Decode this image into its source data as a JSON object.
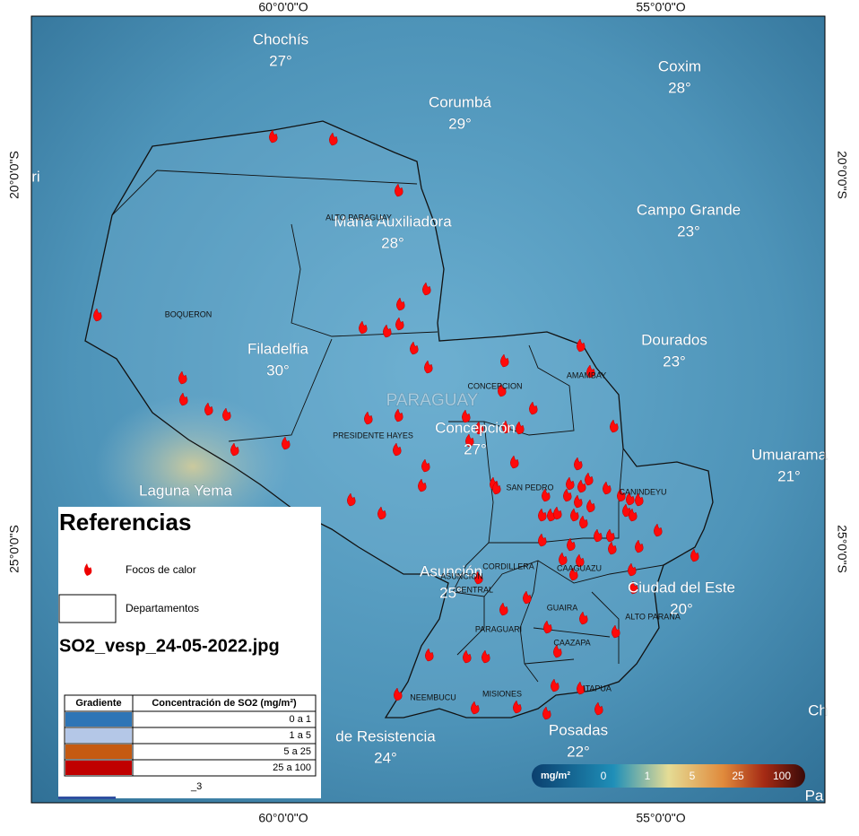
{
  "map": {
    "edge_labels": {
      "lon_west": "60°0'0\"O",
      "lon_east": "55°0'0\"O",
      "lat_north": "20°0'0\"S",
      "lat_south": "25°0'0\"S"
    },
    "cities": [
      {
        "name": "Chochís",
        "temp": "27°"
      },
      {
        "name": "Corumbá",
        "temp": "29°"
      },
      {
        "name": "Coxim",
        "temp": "28°"
      },
      {
        "name": "María Auxiliadora",
        "temp": "28°"
      },
      {
        "name": "Campo Grande",
        "temp": "23°"
      },
      {
        "name": "Filadelfia",
        "temp": "30°"
      },
      {
        "name": "Dourados",
        "temp": "23°"
      },
      {
        "name": "Concepción",
        "temp": "27°"
      },
      {
        "name": "Umuarama",
        "temp": "21°"
      },
      {
        "name": "Asunción",
        "temp": "25°"
      },
      {
        "name": "Ciudad del Este",
        "temp": "20°"
      },
      {
        "name": "de Resistencia",
        "temp": "24°"
      },
      {
        "name": "Posadas",
        "temp": "22°"
      }
    ],
    "partial_labels": [
      "ri",
      "Laguna Yema",
      "Ch",
      "Pa"
    ],
    "country": "PARAGUAY",
    "departments": [
      "ALTO PARAGUAY",
      "BOQUERON",
      "CONCEPCION",
      "AMAMBAY",
      "PRESIDENTE HAYES",
      "SAN PEDRO",
      "CANINDEYU",
      "CORDILLERA",
      "ASUNCION",
      "CAAGUAZU",
      "CENTRAL",
      "GUAIRA",
      "ALTO PARANA",
      "PARAGUARI",
      "CAAZAPA",
      "NEEMBUCU",
      "MISIONES",
      "ITAPUA"
    ],
    "legend": {
      "title": "Referencias",
      "fires": "Focos de calor",
      "departments": "Departamentos",
      "file": "SO2_vesp_24-05-2022.jpg",
      "table": {
        "header": [
          "Gradiente",
          "Concentración de SO2 (mg/m²)"
        ],
        "rows": [
          {
            "color": "#2e75b6",
            "range": "0 a 1"
          },
          {
            "color": "#b4c7e7",
            "range": "1 a 5"
          },
          {
            "color": "#c55a11",
            "range": "5 a 25"
          },
          {
            "color": "#c00000",
            "range": "25 a 100"
          }
        ]
      },
      "footnote": "_3"
    },
    "colorbar": {
      "unit": "mg/m²",
      "ticks": [
        "0",
        "1",
        "5",
        "25",
        "100"
      ]
    }
  }
}
